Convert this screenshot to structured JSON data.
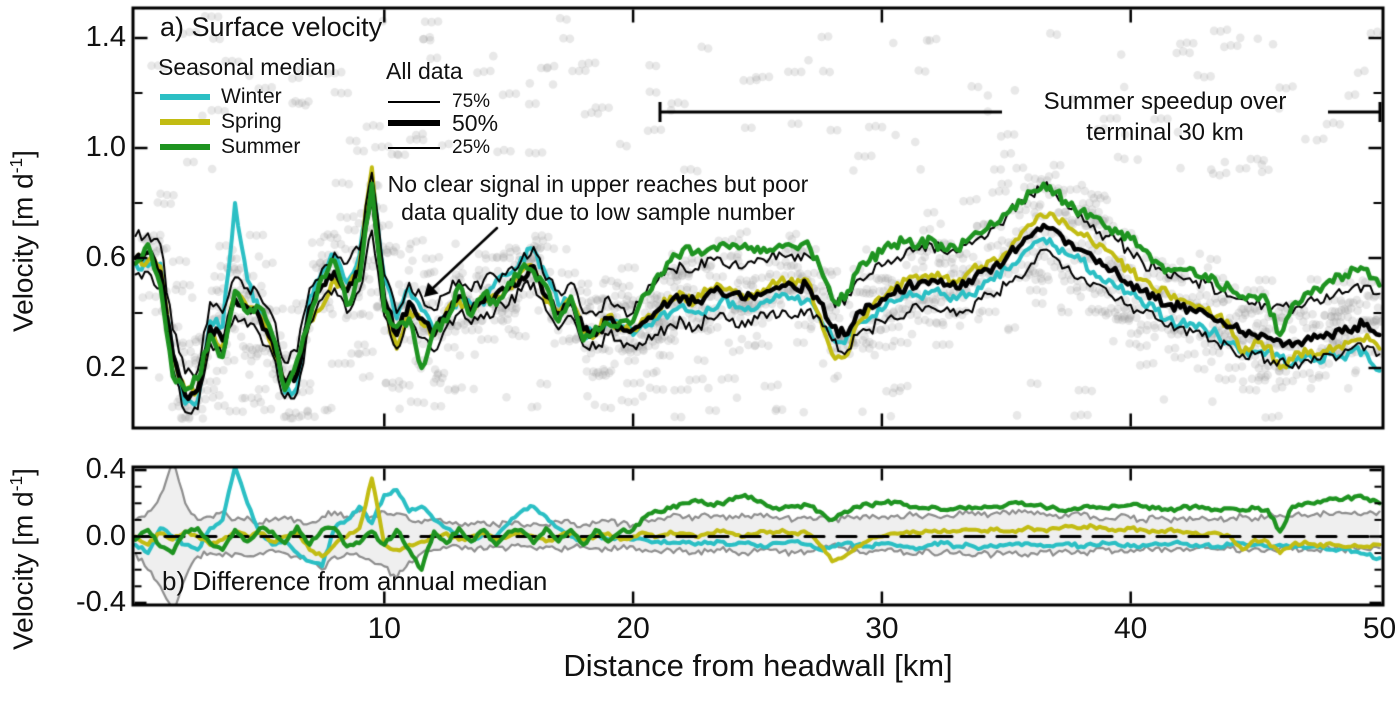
{
  "figure": {
    "panel_a": {
      "title": "a) Surface velocity",
      "legend_seasonal": {
        "header": "Seasonal median",
        "items": [
          {
            "label": "Winter",
            "color_key": "winter"
          },
          {
            "label": "Spring",
            "color_key": "spring"
          },
          {
            "label": "Summer",
            "color_key": "summer"
          }
        ]
      },
      "legend_alldata": {
        "header": "All data",
        "items": [
          {
            "label": "75%",
            "weight": "thin"
          },
          {
            "label": "50%",
            "weight": "thick"
          },
          {
            "label": "25%",
            "weight": "thin"
          }
        ]
      },
      "annotation": {
        "line1": "No clear signal in upper reaches but poor",
        "line2": "data quality due to low sample number"
      },
      "bracket": {
        "line1": "Summer speedup over",
        "line2": "terminal 30 km"
      }
    },
    "panel_b": {
      "title": "b) Difference from annual median"
    },
    "axes": {
      "ylabel_main": "Velocity [m d",
      "ylabel_sup": "-1",
      "ylabel_close": "]",
      "xlabel": "Distance from headwall [km]",
      "xticks": {
        "values": [
          10,
          20,
          30,
          40,
          50
        ],
        "labels": [
          "10",
          "20",
          "30",
          "40",
          "50"
        ]
      },
      "panel_a_yticks": {
        "values": [
          1.4,
          1.0,
          0.6,
          0.2
        ],
        "labels": [
          "1.4",
          "1.0",
          "0.6",
          "0.2"
        ],
        "minor": [
          1.2,
          0.8,
          0.4
        ]
      },
      "panel_b_yticks": {
        "values": [
          0.4,
          0.0,
          -0.4
        ],
        "labels": [
          "0.4",
          "0.0",
          "-0.4"
        ],
        "minor": [
          0.3,
          0.2,
          0.1,
          -0.1,
          -0.2,
          -0.3
        ]
      }
    },
    "colors": {
      "winter": "#2BBFC4",
      "spring": "#C2BC13",
      "summer": "#1E9320",
      "median": "#000000",
      "band_line": "#8F8F8F",
      "band_fill": "#EFEFEF",
      "scatter": "#969696"
    }
  },
  "chart_data": [
    {
      "panel": "a",
      "type": "line",
      "title": "a) Surface velocity",
      "xlabel": "Distance from headwall [km]",
      "ylabel": "Velocity [m d^-1]",
      "xlim": [
        0,
        50.2
      ],
      "ylim": [
        -0.02,
        1.51
      ],
      "grid": false,
      "legend_position": "upper-left",
      "x_start": 0,
      "x_step": 0.5,
      "background_scatter": "thousands of individual velocity measurements drawn as translucent light-gray dots, densest between the 25% and 75% curves, sparse outliers up to ~1.45 m/d",
      "median_50": [
        0.6,
        0.62,
        0.55,
        0.25,
        0.1,
        0.12,
        0.35,
        0.3,
        0.45,
        0.42,
        0.38,
        0.3,
        0.15,
        0.18,
        0.42,
        0.5,
        0.55,
        0.48,
        0.55,
        0.85,
        0.45,
        0.32,
        0.44,
        0.38,
        0.32,
        0.4,
        0.46,
        0.41,
        0.44,
        0.47,
        0.49,
        0.53,
        0.57,
        0.46,
        0.4,
        0.44,
        0.34,
        0.32,
        0.38,
        0.35,
        0.34,
        0.37,
        0.41,
        0.44,
        0.46,
        0.44,
        0.47,
        0.48,
        0.47,
        0.45,
        0.47,
        0.48,
        0.5,
        0.49,
        0.5,
        0.44,
        0.35,
        0.32,
        0.4,
        0.43,
        0.45,
        0.47,
        0.5,
        0.51,
        0.52,
        0.5,
        0.49,
        0.52,
        0.55,
        0.57,
        0.6,
        0.64,
        0.68,
        0.72,
        0.7,
        0.66,
        0.63,
        0.6,
        0.57,
        0.54,
        0.51,
        0.48,
        0.45,
        0.43,
        0.42,
        0.41,
        0.4,
        0.37,
        0.35,
        0.33,
        0.32,
        0.31,
        0.3,
        0.28,
        0.3,
        0.31,
        0.32,
        0.33,
        0.35,
        0.36,
        0.32
      ],
      "p75_offset_above_median": [
        0.08,
        0.07,
        0.1,
        0.09,
        0.08,
        0.07,
        0.09,
        0.1,
        0.08,
        0.07,
        0.08,
        0.09,
        0.07,
        0.08,
        0.07,
        0.06,
        0.07,
        0.1,
        0.08,
        0.06,
        0.09,
        0.08,
        0.07,
        0.08,
        0.09,
        0.07,
        0.06,
        0.07,
        0.08,
        0.06,
        0.07,
        0.06,
        0.07,
        0.06,
        0.08,
        0.07,
        0.06,
        0.07,
        0.08,
        0.07,
        0.06,
        0.1,
        0.11,
        0.12,
        0.11,
        0.12,
        0.13,
        0.12,
        0.11,
        0.12,
        0.13,
        0.12,
        0.11,
        0.1,
        0.11,
        0.12,
        0.1,
        0.11,
        0.12,
        0.11,
        0.12,
        0.12,
        0.13,
        0.12,
        0.13,
        0.12,
        0.13,
        0.14,
        0.13,
        0.14,
        0.15,
        0.16,
        0.15,
        0.14,
        0.13,
        0.12,
        0.13,
        0.12,
        0.11,
        0.12,
        0.11,
        0.1,
        0.11,
        0.1,
        0.11,
        0.1,
        0.11,
        0.1,
        0.11,
        0.12,
        0.11,
        0.12,
        0.13,
        0.12,
        0.13,
        0.14,
        0.13,
        0.14,
        0.15,
        0.14,
        0.15
      ],
      "p25_offset_below_median": [
        0.06,
        0.07,
        0.06,
        0.05,
        0.06,
        0.07,
        0.06,
        0.05,
        0.06,
        0.07,
        0.06,
        0.05,
        0.06,
        0.07,
        0.06,
        0.05,
        0.06,
        0.08,
        0.07,
        0.15,
        0.06,
        0.05,
        0.06,
        0.07,
        0.06,
        0.05,
        0.06,
        0.05,
        0.06,
        0.05,
        0.06,
        0.05,
        0.06,
        0.05,
        0.06,
        0.05,
        0.06,
        0.05,
        0.06,
        0.05,
        0.06,
        0.08,
        0.09,
        0.08,
        0.09,
        0.1,
        0.09,
        0.08,
        0.09,
        0.1,
        0.09,
        0.08,
        0.09,
        0.1,
        0.09,
        0.06,
        0.05,
        0.07,
        0.08,
        0.09,
        0.08,
        0.09,
        0.1,
        0.09,
        0.1,
        0.09,
        0.1,
        0.11,
        0.1,
        0.11,
        0.1,
        0.11,
        0.1,
        0.09,
        0.1,
        0.09,
        0.1,
        0.09,
        0.08,
        0.09,
        0.08,
        0.08,
        0.07,
        0.08,
        0.07,
        0.08,
        0.07,
        0.08,
        0.07,
        0.08,
        0.07,
        0.08,
        0.07,
        0.08,
        0.07,
        0.08,
        0.07,
        0.08,
        0.07,
        0.08,
        0.07
      ],
      "winter_offset_from_median": [
        -0.02,
        -0.05,
        0.03,
        0.0,
        -0.03,
        -0.04,
        0.02,
        0.05,
        0.35,
        0.1,
        0.02,
        -0.02,
        -0.04,
        -0.05,
        0.04,
        0.05,
        0.06,
        0.03,
        0.06,
        0.05,
        0.08,
        0.06,
        0.05,
        0.03,
        0.01,
        -0.02,
        0.0,
        0.02,
        -0.01,
        0.05,
        0.05,
        0.07,
        0.06,
        0.08,
        0.03,
        0.0,
        -0.02,
        0.01,
        -0.01,
        0.0,
        -0.02,
        -0.02,
        -0.03,
        -0.04,
        -0.03,
        -0.04,
        -0.05,
        -0.04,
        -0.03,
        -0.04,
        -0.05,
        -0.04,
        -0.03,
        -0.04,
        -0.05,
        -0.06,
        -0.04,
        -0.03,
        -0.04,
        -0.05,
        -0.04,
        -0.03,
        -0.04,
        -0.05,
        -0.04,
        -0.03,
        -0.04,
        -0.05,
        -0.06,
        -0.05,
        -0.04,
        -0.05,
        -0.04,
        -0.05,
        -0.06,
        -0.05,
        -0.04,
        -0.05,
        -0.06,
        -0.05,
        -0.04,
        -0.05,
        -0.04,
        -0.05,
        -0.06,
        -0.05,
        -0.06,
        -0.05,
        -0.06,
        -0.07,
        -0.06,
        -0.05,
        -0.06,
        -0.07,
        -0.06,
        -0.08,
        -0.07,
        -0.09,
        -0.08,
        -0.11,
        -0.13
      ],
      "spring_offset_from_median": [
        0.0,
        -0.03,
        0.02,
        -0.01,
        0.02,
        0.0,
        -0.03,
        -0.02,
        0.02,
        0.0,
        0.01,
        -0.02,
        0.0,
        0.01,
        -0.05,
        -0.08,
        -0.03,
        0.0,
        0.03,
        0.08,
        -0.03,
        -0.05,
        -0.03,
        -0.02,
        0.0,
        0.01,
        -0.01,
        0.0,
        0.01,
        -0.01,
        0.0,
        0.02,
        0.0,
        -0.02,
        0.0,
        0.01,
        -0.01,
        0.0,
        0.01,
        -0.01,
        0.0,
        0.01,
        0.0,
        0.02,
        0.01,
        0.0,
        0.01,
        0.02,
        0.01,
        0.0,
        0.01,
        0.02,
        0.03,
        0.01,
        0.02,
        -0.05,
        -0.1,
        -0.08,
        -0.04,
        -0.01,
        0.0,
        0.01,
        0.02,
        0.01,
        0.02,
        0.03,
        0.02,
        0.03,
        0.02,
        0.03,
        0.02,
        0.03,
        0.04,
        0.03,
        0.04,
        0.05,
        0.06,
        0.05,
        0.06,
        0.05,
        0.04,
        0.04,
        0.03,
        0.04,
        0.03,
        0.02,
        0.01,
        0.02,
        0.0,
        -0.08,
        -0.02,
        -0.03,
        -0.1,
        -0.05,
        -0.03,
        -0.06,
        -0.04,
        -0.06,
        -0.05,
        -0.04,
        -0.05
      ],
      "summer_offset_from_median": [
        -0.02,
        0.03,
        -0.05,
        -0.08,
        0.02,
        0.04,
        -0.03,
        -0.06,
        0.03,
        -0.02,
        0.04,
        0.02,
        -0.03,
        0.05,
        -0.04,
        0.03,
        0.04,
        -0.05,
        -0.03,
        0.02,
        -0.04,
        0.03,
        -0.06,
        -0.18,
        0.02,
        -0.03,
        0.04,
        -0.02,
        0.03,
        -0.04,
        0.02,
        0.03,
        -0.02,
        0.04,
        -0.03,
        0.02,
        -0.04,
        0.03,
        -0.02,
        0.02,
        0.03,
        0.1,
        0.13,
        0.15,
        0.17,
        0.18,
        0.16,
        0.17,
        0.18,
        0.2,
        0.17,
        0.15,
        0.14,
        0.15,
        0.16,
        0.13,
        0.1,
        0.13,
        0.15,
        0.16,
        0.17,
        0.18,
        0.16,
        0.14,
        0.15,
        0.13,
        0.14,
        0.15,
        0.14,
        0.15,
        0.16,
        0.17,
        0.16,
        0.15,
        0.14,
        0.13,
        0.14,
        0.15,
        0.14,
        0.15,
        0.16,
        0.15,
        0.14,
        0.13,
        0.14,
        0.15,
        0.14,
        0.13,
        0.14,
        0.13,
        0.14,
        0.13,
        0.02,
        0.15,
        0.17,
        0.18,
        0.2,
        0.19,
        0.21,
        0.2,
        0.18
      ]
    },
    {
      "panel": "b",
      "type": "line+band",
      "title": "b) Difference from annual median",
      "xlabel": "Distance from headwall [km]",
      "ylabel": "Velocity [m d^-1]",
      "xlim": [
        0,
        50.2
      ],
      "ylim": [
        -0.42,
        0.42
      ],
      "grid": false,
      "zero_line": "dashed black horizontal line at 0.0",
      "x_start": 0,
      "x_step": 0.5,
      "winter_diff": [
        -0.05,
        -0.1,
        0.05,
        0.0,
        -0.05,
        -0.08,
        0.05,
        0.1,
        0.42,
        0.2,
        0.02,
        -0.05,
        -0.03,
        -0.1,
        -0.15,
        -0.18,
        0.05,
        0.1,
        0.18,
        0.08,
        0.25,
        0.28,
        0.15,
        0.18,
        0.1,
        0.05,
        0.0,
        -0.03,
        0.02,
        0.0,
        0.08,
        0.15,
        0.18,
        0.12,
        0.05,
        0.0,
        -0.03,
        0.02,
        -0.02,
        0.0,
        -0.02,
        -0.02,
        -0.03,
        -0.04,
        -0.03,
        -0.05,
        -0.04,
        -0.03,
        -0.05,
        -0.04,
        -0.06,
        -0.05,
        -0.04,
        -0.03,
        -0.05,
        -0.08,
        -0.06,
        -0.04,
        -0.05,
        -0.06,
        -0.04,
        -0.05,
        -0.06,
        -0.07,
        -0.05,
        -0.04,
        -0.06,
        -0.05,
        -0.07,
        -0.06,
        -0.05,
        -0.04,
        -0.05,
        -0.06,
        -0.05,
        -0.04,
        -0.06,
        -0.05,
        -0.04,
        -0.05,
        -0.06,
        -0.05,
        -0.04,
        -0.05,
        -0.04,
        -0.06,
        -0.05,
        -0.06,
        -0.05,
        -0.04,
        -0.05,
        -0.06,
        -0.05,
        -0.06,
        -0.07,
        -0.06,
        -0.08,
        -0.07,
        -0.09,
        -0.11,
        -0.13
      ],
      "spring_diff": [
        0.0,
        -0.05,
        0.02,
        -0.02,
        0.03,
        0.0,
        -0.05,
        -0.02,
        0.03,
        0.0,
        0.02,
        -0.03,
        0.0,
        0.02,
        -0.08,
        -0.12,
        -0.05,
        0.0,
        0.05,
        0.35,
        -0.05,
        -0.08,
        -0.05,
        -0.03,
        0.0,
        0.02,
        -0.02,
        0.0,
        0.02,
        -0.02,
        0.0,
        0.03,
        0.0,
        -0.03,
        0.0,
        0.02,
        -0.02,
        0.0,
        0.02,
        -0.02,
        0.0,
        0.02,
        0.0,
        0.03,
        0.02,
        0.0,
        0.02,
        0.03,
        0.02,
        0.0,
        0.02,
        0.03,
        0.04,
        0.02,
        0.02,
        -0.05,
        -0.15,
        -0.12,
        -0.06,
        -0.02,
        0.0,
        0.02,
        0.03,
        0.02,
        0.03,
        0.04,
        0.03,
        0.04,
        0.03,
        0.04,
        0.03,
        0.04,
        0.05,
        0.04,
        0.05,
        0.06,
        0.05,
        0.06,
        0.05,
        0.04,
        0.05,
        0.04,
        0.03,
        0.04,
        0.03,
        0.02,
        0.01,
        0.02,
        0.0,
        -0.08,
        -0.02,
        -0.03,
        -0.1,
        -0.05,
        -0.03,
        -0.06,
        -0.04,
        -0.06,
        -0.05,
        -0.06,
        -0.05
      ],
      "summer_diff": [
        -0.02,
        0.04,
        -0.06,
        -0.1,
        0.03,
        0.05,
        -0.04,
        -0.08,
        0.04,
        -0.03,
        0.05,
        0.03,
        -0.04,
        0.06,
        -0.05,
        0.04,
        0.05,
        -0.06,
        -0.04,
        0.03,
        -0.05,
        0.04,
        -0.08,
        -0.2,
        0.03,
        -0.04,
        0.05,
        -0.03,
        0.04,
        -0.05,
        0.03,
        0.04,
        -0.04,
        0.05,
        -0.03,
        0.04,
        -0.05,
        0.04,
        -0.03,
        0.03,
        0.04,
        0.12,
        0.15,
        0.17,
        0.2,
        0.22,
        0.19,
        0.2,
        0.22,
        0.25,
        0.21,
        0.18,
        0.17,
        0.18,
        0.19,
        0.15,
        0.1,
        0.15,
        0.18,
        0.19,
        0.2,
        0.21,
        0.19,
        0.17,
        0.18,
        0.16,
        0.17,
        0.18,
        0.17,
        0.18,
        0.19,
        0.2,
        0.19,
        0.18,
        0.17,
        0.16,
        0.17,
        0.18,
        0.17,
        0.18,
        0.19,
        0.18,
        0.17,
        0.16,
        0.17,
        0.18,
        0.17,
        0.16,
        0.17,
        0.16,
        0.17,
        0.16,
        0.03,
        0.18,
        0.2,
        0.21,
        0.23,
        0.22,
        0.24,
        0.23,
        0.2
      ],
      "band_upper": [
        0.1,
        0.15,
        0.25,
        0.45,
        0.2,
        0.1,
        0.12,
        0.15,
        0.1,
        0.12,
        0.08,
        0.1,
        0.12,
        0.1,
        0.08,
        0.12,
        0.15,
        0.12,
        0.15,
        0.12,
        0.15,
        0.14,
        0.1,
        0.08,
        0.1,
        0.08,
        0.07,
        0.08,
        0.09,
        0.07,
        0.08,
        0.07,
        0.08,
        0.07,
        0.09,
        0.08,
        0.07,
        0.08,
        0.09,
        0.08,
        0.07,
        0.1,
        0.11,
        0.12,
        0.11,
        0.12,
        0.13,
        0.12,
        0.11,
        0.12,
        0.13,
        0.12,
        0.11,
        0.1,
        0.11,
        0.12,
        0.1,
        0.11,
        0.12,
        0.11,
        0.12,
        0.12,
        0.13,
        0.12,
        0.13,
        0.12,
        0.13,
        0.14,
        0.13,
        0.14,
        0.15,
        0.16,
        0.15,
        0.14,
        0.13,
        0.12,
        0.13,
        0.12,
        0.11,
        0.12,
        0.11,
        0.1,
        0.11,
        0.1,
        0.11,
        0.1,
        0.11,
        0.1,
        0.11,
        0.12,
        0.11,
        0.12,
        0.13,
        0.12,
        0.13,
        0.14,
        0.13,
        0.14,
        0.15,
        0.14,
        0.15
      ],
      "band_lower": [
        -0.1,
        -0.2,
        -0.3,
        -0.45,
        -0.25,
        -0.12,
        -0.1,
        -0.12,
        -0.1,
        -0.12,
        -0.1,
        -0.08,
        -0.1,
        -0.12,
        -0.15,
        -0.2,
        -0.12,
        -0.1,
        -0.12,
        -0.15,
        -0.18,
        -0.25,
        -0.15,
        -0.1,
        -0.08,
        -0.07,
        -0.06,
        -0.07,
        -0.08,
        -0.06,
        -0.07,
        -0.06,
        -0.07,
        -0.06,
        -0.08,
        -0.07,
        -0.06,
        -0.07,
        -0.08,
        -0.07,
        -0.06,
        -0.08,
        -0.09,
        -0.08,
        -0.09,
        -0.1,
        -0.09,
        -0.08,
        -0.09,
        -0.1,
        -0.09,
        -0.08,
        -0.09,
        -0.1,
        -0.09,
        -0.06,
        -0.05,
        -0.07,
        -0.08,
        -0.09,
        -0.08,
        -0.09,
        -0.1,
        -0.09,
        -0.1,
        -0.09,
        -0.1,
        -0.11,
        -0.1,
        -0.11,
        -0.1,
        -0.11,
        -0.1,
        -0.09,
        -0.1,
        -0.09,
        -0.1,
        -0.09,
        -0.08,
        -0.09,
        -0.08,
        -0.08,
        -0.07,
        -0.08,
        -0.07,
        -0.08,
        -0.07,
        -0.08,
        -0.07,
        -0.08,
        -0.07,
        -0.08,
        -0.07,
        -0.08,
        -0.07,
        -0.08,
        -0.07,
        -0.08,
        -0.07,
        -0.08,
        -0.07
      ]
    }
  ]
}
